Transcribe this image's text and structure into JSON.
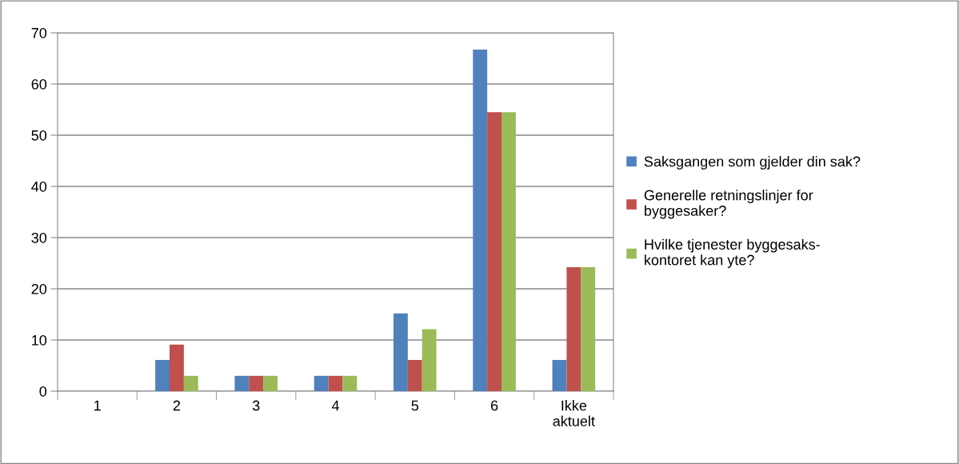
{
  "chart_data": {
    "type": "bar",
    "categories": [
      "1",
      "2",
      "3",
      "4",
      "5",
      "6",
      "Ikke\naktuelt"
    ],
    "series": [
      {
        "name": "Saksgangen som gjelder din sak?",
        "color": "#4f81bd",
        "values": [
          0,
          6.1,
          3,
          3,
          15.2,
          66.7,
          6.1
        ]
      },
      {
        "name": "Generelle retningslinjer for\nbyggesaker?",
        "color": "#c0504d",
        "values": [
          0,
          9.1,
          3,
          3,
          6.1,
          54.5,
          24.2
        ]
      },
      {
        "name": "Hvilke tjenester byggesaks-\nkontoret kan yte?",
        "color": "#9bbb59",
        "values": [
          0,
          3,
          3,
          3,
          12.1,
          54.5,
          24.2
        ]
      }
    ],
    "ylim": [
      0,
      70
    ],
    "yticks": [
      0,
      10,
      20,
      30,
      40,
      50,
      60,
      70
    ],
    "grid": "y",
    "legend": "right"
  }
}
